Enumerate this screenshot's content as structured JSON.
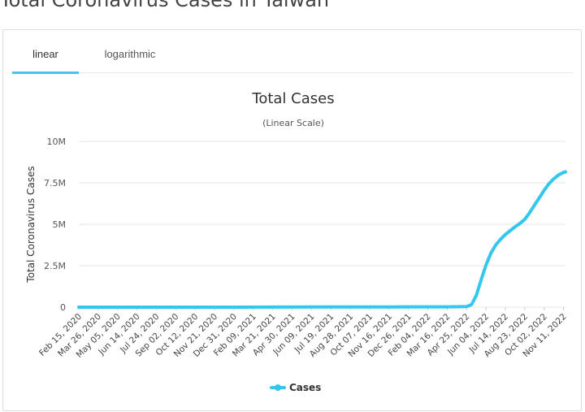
{
  "page": {
    "heading": "Total Coronavirus Cases in Taiwan"
  },
  "tabs": [
    {
      "label": "linear",
      "active": true
    },
    {
      "label": "logarithmic",
      "active": false
    }
  ],
  "colors": {
    "accent": "#44c8ea",
    "series": "#33c6ee",
    "grid": "#e6e6e6"
  },
  "chart_data": {
    "type": "line",
    "title": "Total Cases",
    "subtitle": "(Linear Scale)",
    "ylabel": "Total Coronavirus Cases",
    "xlabel": "",
    "ylim": [
      0,
      10000000
    ],
    "yticks": [
      {
        "value": 0,
        "label": "0"
      },
      {
        "value": 2500000,
        "label": "2.5M"
      },
      {
        "value": 5000000,
        "label": "5M"
      },
      {
        "value": 7500000,
        "label": "7.5M"
      },
      {
        "value": 10000000,
        "label": "10M"
      }
    ],
    "x_categories": [
      "Feb 15, 2020",
      "Mar 26, 2020",
      "May 05, 2020",
      "Jun 14, 2020",
      "Jul 24, 2020",
      "Sep 02, 2020",
      "Oct 12, 2020",
      "Nov 21, 2020",
      "Dec 31, 2020",
      "Feb 09, 2021",
      "Mar 21, 2021",
      "Apr 30, 2021",
      "Jun 09, 2021",
      "Jul 19, 2021",
      "Aug 28, 2021",
      "Oct 07, 2021",
      "Nov 16, 2021",
      "Dec 26, 2021",
      "Feb 04, 2022",
      "Mar 16, 2022",
      "Apr 25, 2022",
      "Jun 04, 2022",
      "Jul 14, 2022",
      "Aug 23, 2022",
      "Oct 02, 2022",
      "Nov 11, 2022"
    ],
    "legend": "bottom-center",
    "grid": true,
    "series": [
      {
        "name": "Cases",
        "points": [
          [
            "Feb 15, 2020",
            0
          ],
          [
            "Jun 14, 2020",
            450
          ],
          [
            "Dec 31, 2020",
            800
          ],
          [
            "Jun 09, 2021",
            12000
          ],
          [
            "Nov 16, 2021",
            16500
          ],
          [
            "Mar 16, 2022",
            22000
          ],
          [
            "Apr 25, 2022",
            40000
          ],
          [
            "May 05, 2022",
            150000
          ],
          [
            "May 15, 2022",
            700000
          ],
          [
            "May 25, 2022",
            1650000
          ],
          [
            "Jun 04, 2022",
            2550000
          ],
          [
            "Jun 14, 2022",
            3250000
          ],
          [
            "Jun 24, 2022",
            3750000
          ],
          [
            "Jul 04, 2022",
            4100000
          ],
          [
            "Jul 14, 2022",
            4380000
          ],
          [
            "Jul 24, 2022",
            4620000
          ],
          [
            "Aug 03, 2022",
            4850000
          ],
          [
            "Aug 13, 2022",
            5050000
          ],
          [
            "Aug 23, 2022",
            5300000
          ],
          [
            "Sep 02, 2022",
            5700000
          ],
          [
            "Sep 12, 2022",
            6150000
          ],
          [
            "Sep 22, 2022",
            6600000
          ],
          [
            "Oct 02, 2022",
            7050000
          ],
          [
            "Oct 12, 2022",
            7450000
          ],
          [
            "Oct 22, 2022",
            7750000
          ],
          [
            "Nov 01, 2022",
            7980000
          ],
          [
            "Nov 11, 2022",
            8130000
          ],
          [
            "Nov 15, 2022",
            8160000
          ]
        ]
      }
    ]
  }
}
